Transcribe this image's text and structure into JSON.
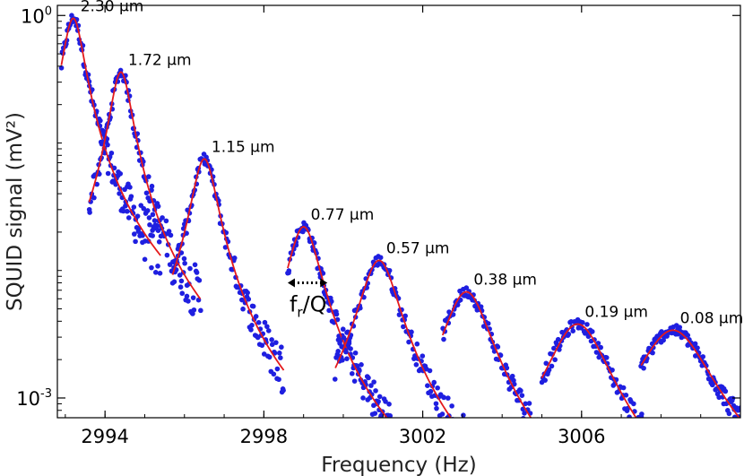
{
  "chart_data": {
    "type": "scatter",
    "xlabel": "Frequency (Hz)",
    "ylabel": "SQUID signal (mV²)",
    "x_scale": "linear",
    "y_scale": "log",
    "xlim": [
      2992.8,
      3010.0
    ],
    "ylim": [
      0.0007,
      1.2
    ],
    "x_ticks": [
      {
        "value": 2994,
        "label": "2994"
      },
      {
        "value": 2998,
        "label": "2998"
      },
      {
        "value": 3002,
        "label": "3002"
      },
      {
        "value": 3006,
        "label": "3006"
      }
    ],
    "y_ticks": [
      {
        "value": 1,
        "base": "10",
        "exp": "0"
      },
      {
        "value": 0.001,
        "base": "10",
        "exp": "-3"
      }
    ],
    "marker_color": "#1f1fe0",
    "fit_color": "#e41a1c",
    "series": [
      {
        "name": "2.30 µm",
        "f0": 2993.2,
        "peak": 0.95,
        "gamma": 0.26,
        "x_start": 2992.9,
        "x_end": 2995.4
      },
      {
        "name": "1.72 µm",
        "f0": 2994.4,
        "peak": 0.36,
        "gamma": 0.26,
        "x_start": 2993.6,
        "x_end": 2996.4
      },
      {
        "name": "1.15 µm",
        "f0": 2996.5,
        "peak": 0.075,
        "gamma": 0.3,
        "x_start": 2995.7,
        "x_end": 2998.5
      },
      {
        "name": "0.77 µm",
        "f0": 2999.0,
        "peak": 0.022,
        "gamma": 0.38,
        "x_start": 2998.6,
        "x_end": 3001.2
      },
      {
        "name": "0.57 µm",
        "f0": 3000.9,
        "peak": 0.012,
        "gamma": 0.45,
        "x_start": 2999.8,
        "x_end": 3003.2
      },
      {
        "name": "0.38 µm",
        "f0": 3003.1,
        "peak": 0.0068,
        "gamma": 0.55,
        "x_start": 3002.5,
        "x_end": 3005.6
      },
      {
        "name": "0.19 µm",
        "f0": 3005.9,
        "peak": 0.0038,
        "gamma": 0.7,
        "x_start": 3005.0,
        "x_end": 3008.5
      },
      {
        "name": "0.08 µm",
        "f0": 3008.3,
        "peak": 0.0034,
        "gamma": 0.85,
        "x_start": 3007.5,
        "x_end": 3010.0
      }
    ],
    "annotation": {
      "text": "f",
      "subscript": "r",
      "suffix": "/Q",
      "x_from": 2998.6,
      "x_to": 2999.6,
      "y": 0.008
    }
  }
}
